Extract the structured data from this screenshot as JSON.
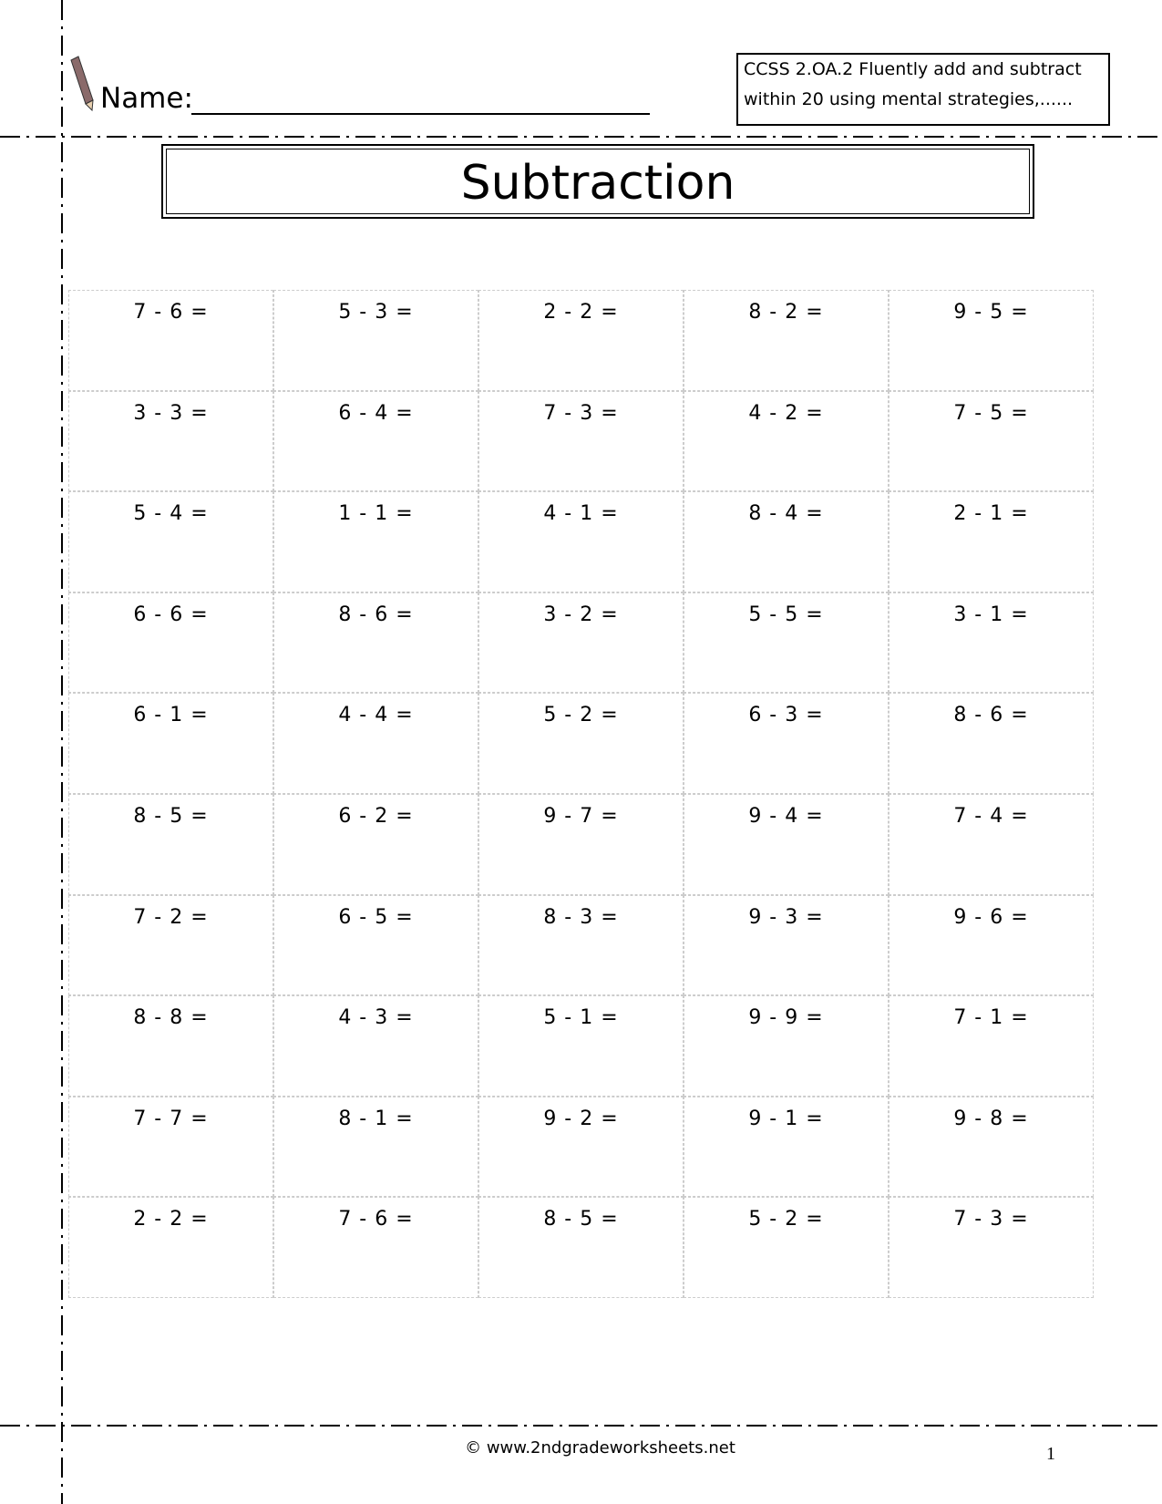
{
  "header": {
    "name_label": "Name:",
    "standard": [
      "CCSS 2.OA.2  Fluently add and subtract",
      "within 20 using mental strategies,......"
    ],
    "title": "Subtraction"
  },
  "problems": [
    [
      "7 - 6 =",
      "5 - 3 =",
      "2 - 2 =",
      "8 - 2 =",
      "9 - 5 ="
    ],
    [
      "3 - 3 =",
      "6 - 4 =",
      "7 - 3 =",
      "4 - 2 =",
      "7 - 5 ="
    ],
    [
      "5 - 4 =",
      "1 - 1 =",
      "4 - 1 =",
      "8 - 4 =",
      "2 - 1 ="
    ],
    [
      "6 - 6 =",
      "8 - 6 =",
      "3 - 2 =",
      "5 - 5 =",
      "3 - 1 ="
    ],
    [
      "6 - 1 =",
      "4 - 4 =",
      "5 - 2 =",
      "6 - 3 =",
      "8 - 6 ="
    ],
    [
      "8 - 5 =",
      "6 - 2 =",
      "9 - 7 =",
      "9 - 4 =",
      "7 - 4 ="
    ],
    [
      "7 - 2 =",
      "6 - 5 =",
      "8 - 3 =",
      "9 - 3 =",
      "9 - 6 ="
    ],
    [
      "8 - 8 =",
      "4 - 3 =",
      "5 - 1 =",
      "9 - 9 =",
      "7 - 1 ="
    ],
    [
      "7 - 7 =",
      "8 - 1 =",
      "9 - 2 =",
      "9 - 1 =",
      "9 - 8 ="
    ],
    [
      "2 - 2 =",
      "7 - 6 =",
      "8 - 5 =",
      "5 - 2 =",
      "7 - 3 ="
    ]
  ],
  "footer": {
    "copyright": "© www.2ndgradeworksheets.net",
    "page_number": "1"
  }
}
